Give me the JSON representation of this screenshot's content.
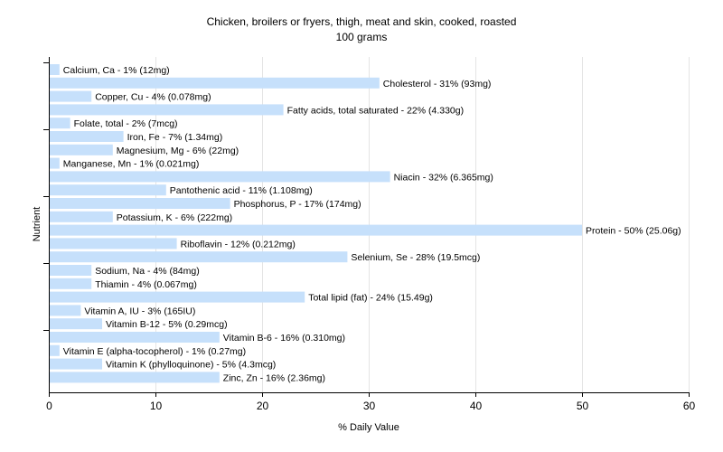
{
  "chart_data": {
    "type": "bar",
    "orientation": "horizontal",
    "title": "Chicken, broilers or fryers, thigh, meat and skin, cooked, roasted",
    "subtitle": "100 grams",
    "xlabel": "% Daily Value",
    "ylabel": "Nutrient",
    "xlim": [
      0,
      60
    ],
    "xticks": [
      "0",
      "10",
      "20",
      "30",
      "40",
      "50",
      "60"
    ],
    "grid": true,
    "bar_color": "#c6e0fb",
    "categories": [
      "Calcium, Ca",
      "Cholesterol",
      "Copper, Cu",
      "Fatty acids, total saturated",
      "Folate, total",
      "Iron, Fe",
      "Magnesium, Mg",
      "Manganese, Mn",
      "Niacin",
      "Pantothenic acid",
      "Phosphorus, P",
      "Potassium, K",
      "Protein",
      "Riboflavin",
      "Selenium, Se",
      "Sodium, Na",
      "Thiamin",
      "Total lipid (fat)",
      "Vitamin A, IU",
      "Vitamin B-12",
      "Vitamin B-6",
      "Vitamin E (alpha-tocopherol)",
      "Vitamin K (phylloquinone)",
      "Zinc, Zn"
    ],
    "values": [
      1,
      31,
      4,
      22,
      2,
      7,
      6,
      1,
      32,
      11,
      17,
      6,
      50,
      12,
      28,
      4,
      4,
      24,
      3,
      5,
      16,
      1,
      5,
      16
    ],
    "labels": [
      "Calcium, Ca - 1% (12mg)",
      "Cholesterol - 31% (93mg)",
      "Copper, Cu - 4% (0.078mg)",
      "Fatty acids, total saturated - 22% (4.330g)",
      "Folate, total - 2% (7mcg)",
      "Iron, Fe - 7% (1.34mg)",
      "Magnesium, Mg - 6% (22mg)",
      "Manganese, Mn - 1% (0.021mg)",
      "Niacin - 32% (6.365mg)",
      "Pantothenic acid - 11% (1.108mg)",
      "Phosphorus, P - 17% (174mg)",
      "Potassium, K - 6% (222mg)",
      "Protein - 50% (25.06g)",
      "Riboflavin - 12% (0.212mg)",
      "Selenium, Se - 28% (19.5mcg)",
      "Sodium, Na - 4% (84mg)",
      "Thiamin - 4% (0.067mg)",
      "Total lipid (fat) - 24% (15.49g)",
      "Vitamin A, IU - 3% (165IU)",
      "Vitamin B-12 - 5% (0.29mcg)",
      "Vitamin B-6 - 16% (0.310mg)",
      "Vitamin E (alpha-tocopherol) - 1% (0.27mg)",
      "Vitamin K (phylloquinone) - 5% (4.3mcg)",
      "Zinc, Zn - 16% (2.36mg)"
    ]
  }
}
